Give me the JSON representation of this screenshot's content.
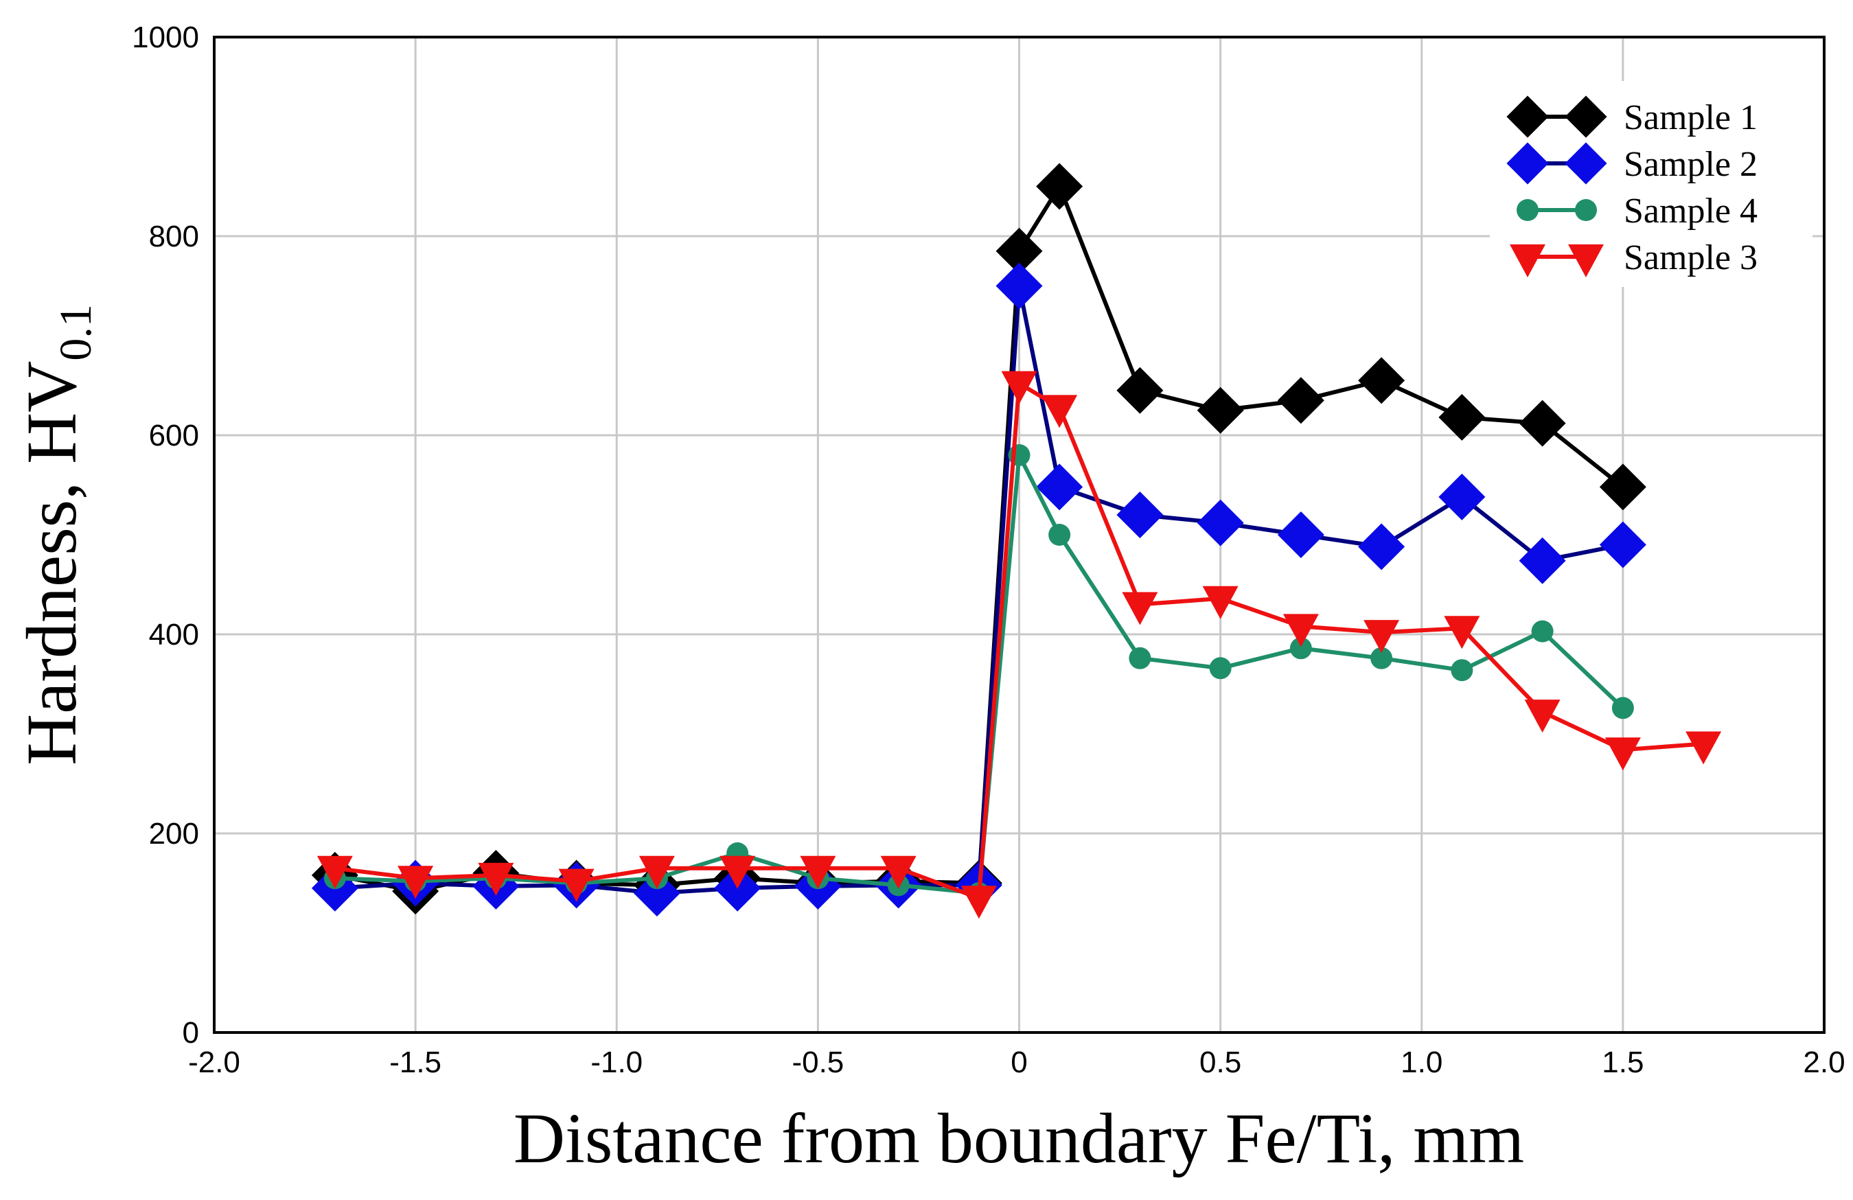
{
  "chart_data": {
    "type": "line",
    "title": "",
    "xlabel": "Distance from boundary Fe/Ti, mm",
    "ylabel_main": "Hardness,  HV",
    "ylabel_sub": "0.1",
    "xlim": [
      -2.0,
      2.0
    ],
    "ylim": [
      0,
      1000
    ],
    "x_ticks": [
      -2.0,
      -1.5,
      -1.0,
      -0.5,
      0,
      0.5,
      1.0,
      1.5,
      2.0
    ],
    "x_tick_labels": [
      "-2.0",
      "-1.5",
      "-1.0",
      "-0.5",
      "0",
      "0.5",
      "1.0",
      "1.5",
      "2.0"
    ],
    "y_ticks": [
      0,
      200,
      400,
      600,
      800,
      1000
    ],
    "y_tick_labels": [
      "0",
      "200",
      "400",
      "600",
      "800",
      "1000"
    ],
    "grid": true,
    "legend_position": "top-right",
    "series": [
      {
        "name": "Sample 1",
        "color": "#000000",
        "marker": "diamond",
        "x": [
          -1.7,
          -1.5,
          -1.3,
          -1.1,
          -0.9,
          -0.7,
          -0.5,
          -0.3,
          -0.1,
          0,
          0.1,
          0.3,
          0.5,
          0.7,
          0.9,
          1.1,
          1.3,
          1.5
        ],
        "y": [
          158,
          142,
          160,
          150,
          148,
          155,
          150,
          152,
          150,
          785,
          850,
          645,
          625,
          635,
          655,
          618,
          612,
          548
        ]
      },
      {
        "name": "Sample 2",
        "color": "#0a0ae6",
        "line_color": "#000080",
        "marker": "diamond",
        "x": [
          -1.7,
          -1.5,
          -1.3,
          -1.1,
          -0.9,
          -0.7,
          -0.5,
          -0.3,
          -0.1,
          0,
          0.1,
          0.3,
          0.5,
          0.7,
          0.9,
          1.1,
          1.3,
          1.5
        ],
        "y": [
          145,
          150,
          147,
          148,
          140,
          145,
          147,
          148,
          148,
          750,
          548,
          520,
          512,
          500,
          488,
          538,
          474,
          490
        ]
      },
      {
        "name": "Sample 4",
        "color": "#1f8f6a",
        "marker": "circle",
        "x": [
          -1.7,
          -1.5,
          -1.3,
          -1.1,
          -0.9,
          -0.7,
          -0.5,
          -0.3,
          -0.1,
          0,
          0.1,
          0.3,
          0.5,
          0.7,
          0.9,
          1.1,
          1.3,
          1.5
        ],
        "y": [
          155,
          152,
          155,
          150,
          155,
          180,
          155,
          148,
          140,
          580,
          500,
          376,
          366,
          386,
          376,
          364,
          403,
          326
        ]
      },
      {
        "name": "Sample 3",
        "color": "#ee1111",
        "marker": "triangle-down",
        "x": [
          -1.7,
          -1.5,
          -1.3,
          -1.1,
          -0.9,
          -0.7,
          -0.5,
          -0.3,
          -0.1,
          0,
          0.1,
          0.3,
          0.5,
          0.7,
          0.9,
          1.1,
          1.3,
          1.5,
          1.7
        ],
        "y": [
          165,
          155,
          158,
          152,
          165,
          165,
          165,
          165,
          135,
          652,
          628,
          430,
          436,
          408,
          402,
          406,
          322,
          284,
          290
        ]
      }
    ]
  }
}
